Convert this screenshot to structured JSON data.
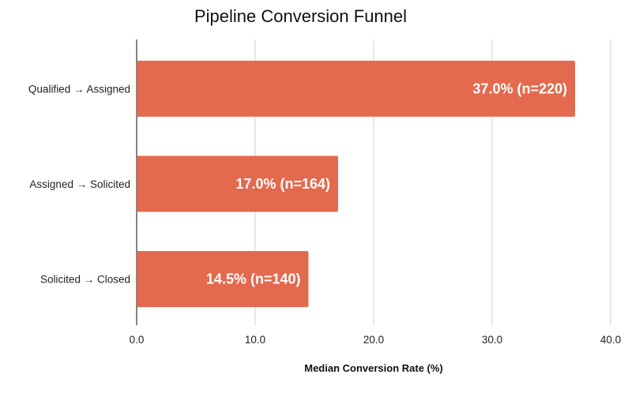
{
  "chart_data": {
    "type": "bar",
    "orientation": "horizontal",
    "title": "Pipeline Conversion Funnel",
    "xlabel": "Median Conversion Rate (%)",
    "ylabel": "",
    "xlim": [
      0,
      40
    ],
    "xticks": [
      "0.0",
      "10.0",
      "20.0",
      "30.0",
      "40.0"
    ],
    "xtick_values": [
      0,
      10,
      20,
      30,
      40
    ],
    "grid": true,
    "bar_color": "#e36a4e",
    "categories": [
      "Qualified → Assigned",
      "Assigned → Solicited",
      "Solicited → Closed"
    ],
    "values": [
      37.0,
      17.0,
      14.5
    ],
    "data_labels": [
      "37.0% (n=220)",
      "17.0% (n=164)",
      "14.5% (n=140)"
    ]
  }
}
